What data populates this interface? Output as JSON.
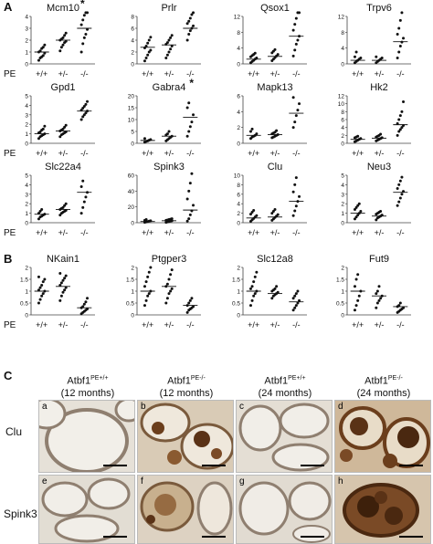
{
  "panel_labels": {
    "a": "A",
    "b": "B",
    "c": "C"
  },
  "genotype_row_label": "PE",
  "chart_data": [
    {
      "type": "scatter",
      "title": "Mcm10",
      "marker": "*",
      "categories": [
        "+/+",
        "+/-",
        "-/-"
      ],
      "ylim": [
        0,
        4
      ],
      "yticks": [
        0,
        1,
        2,
        3,
        4
      ],
      "points": [
        [
          0.3,
          0.5,
          0.6,
          0.7,
          0.9,
          1.0,
          1.1,
          1.3,
          1.4,
          1.6
        ],
        [
          1.1,
          1.4,
          1.6,
          1.8,
          1.9,
          2.0,
          2.1,
          2.2,
          2.4,
          2.6
        ],
        [
          1.0,
          1.7,
          2.2,
          2.5,
          2.9,
          3.3,
          3.7,
          4.1,
          4.5,
          5.0
        ]
      ],
      "means": [
        1.0,
        2.0,
        3.0
      ]
    },
    {
      "type": "scatter",
      "title": "Prlr",
      "marker": "",
      "categories": [
        "+/+",
        "+/-",
        "-/-"
      ],
      "ylim": [
        0,
        8
      ],
      "yticks": [
        0,
        2,
        4,
        6,
        8
      ],
      "points": [
        [
          0.5,
          1.0,
          1.5,
          2.0,
          2.3,
          2.7,
          3.0,
          3.5,
          4.0,
          4.5
        ],
        [
          1.0,
          1.5,
          2.0,
          2.5,
          3.0,
          3.3,
          3.6,
          4.0,
          4.4,
          4.8
        ],
        [
          4.0,
          5.0,
          5.6,
          6.0,
          6.4,
          6.8,
          7.2,
          7.7,
          8.3,
          9.0
        ]
      ],
      "means": [
        2.8,
        3.2,
        6.0
      ]
    },
    {
      "type": "scatter",
      "title": "Qsox1",
      "marker": "",
      "categories": [
        "+/+",
        "+/-",
        "-/-"
      ],
      "ylim": [
        0,
        12
      ],
      "yticks": [
        0,
        4,
        8,
        12
      ],
      "points": [
        [
          0.3,
          0.6,
          0.9,
          1.2,
          1.5,
          1.8,
          2.1,
          2.4,
          2.7
        ],
        [
          0.8,
          1.2,
          1.6,
          2.0,
          2.4,
          2.8,
          3.2,
          3.6
        ],
        [
          2.0,
          3.5,
          5.0,
          6.0,
          7.0,
          8.5,
          10.0,
          11.5,
          13.0,
          14.5
        ]
      ],
      "means": [
        1.2,
        1.9,
        7.0
      ]
    },
    {
      "type": "scatter",
      "title": "Trpv6",
      "marker": "",
      "categories": [
        "+/+",
        "+/-",
        "-/-"
      ],
      "ylim": [
        0,
        12
      ],
      "yticks": [
        0,
        4,
        8,
        12
      ],
      "points": [
        [
          0.3,
          0.6,
          0.9,
          1.2,
          1.5,
          1.8,
          3.0
        ],
        [
          0.3,
          0.6,
          0.9,
          1.2,
          1.5,
          1.8
        ],
        [
          1.5,
          3.0,
          4.5,
          5.5,
          6.5,
          7.5,
          9.0,
          11.0,
          13.0
        ]
      ],
      "means": [
        0.9,
        0.9,
        5.6
      ]
    },
    {
      "type": "scatter",
      "title": "Gpd1",
      "marker": "",
      "categories": [
        "+/+",
        "+/-",
        "-/-"
      ],
      "ylim": [
        0,
        5
      ],
      "yticks": [
        0,
        1,
        2,
        3,
        4,
        5
      ],
      "points": [
        [
          0.5,
          0.7,
          0.8,
          0.9,
          1.0,
          1.1,
          1.2,
          1.4,
          1.5,
          1.8
        ],
        [
          0.7,
          0.9,
          1.0,
          1.1,
          1.2,
          1.3,
          1.4,
          1.5,
          1.7,
          1.9
        ],
        [
          2.5,
          2.8,
          3.0,
          3.2,
          3.4,
          3.5,
          3.7,
          3.9,
          4.1,
          4.4
        ]
      ],
      "means": [
        1.0,
        1.3,
        3.4
      ]
    },
    {
      "type": "scatter",
      "title": "Gabra4",
      "marker": "*",
      "categories": [
        "+/+",
        "+/-",
        "-/-"
      ],
      "ylim": [
        0,
        20
      ],
      "yticks": [
        0,
        5,
        10,
        15,
        20
      ],
      "points": [
        [
          0.5,
          0.8,
          1.0,
          1.3,
          1.6,
          2.0
        ],
        [
          1.0,
          1.5,
          2.0,
          2.5,
          3.0,
          3.5,
          4.0,
          5.0
        ],
        [
          3.0,
          5.0,
          7.0,
          9.0,
          12.0,
          15.0,
          17.0
        ]
      ],
      "means": [
        1.2,
        3.0,
        11.0
      ]
    },
    {
      "type": "scatter",
      "title": "Mapk13",
      "marker": "",
      "categories": [
        "+/+",
        "+/-",
        "-/-"
      ],
      "ylim": [
        0,
        6
      ],
      "yticks": [
        0,
        2,
        4,
        6
      ],
      "points": [
        [
          0.6,
          0.8,
          0.9,
          1.0,
          1.2,
          1.5,
          1.8
        ],
        [
          0.7,
          0.8,
          0.9,
          1.0,
          1.1,
          1.2,
          1.3,
          1.4,
          1.6
        ],
        [
          2.0,
          2.7,
          3.5,
          4.2,
          5.0,
          5.8
        ]
      ],
      "means": [
        1.0,
        1.1,
        3.8
      ]
    },
    {
      "type": "scatter",
      "title": "Hk2",
      "marker": "",
      "categories": [
        "+/+",
        "+/-",
        "-/-"
      ],
      "ylim": [
        0,
        12
      ],
      "yticks": [
        0,
        2,
        4,
        6,
        8,
        10,
        12
      ],
      "points": [
        [
          0.4,
          0.6,
          0.8,
          1.0,
          1.2,
          1.4,
          1.6,
          1.8
        ],
        [
          0.6,
          0.8,
          1.0,
          1.2,
          1.4,
          1.6,
          1.8,
          2.0,
          2.3
        ],
        [
          2.0,
          3.0,
          3.5,
          4.0,
          4.5,
          5.0,
          6.0,
          7.0,
          8.0,
          10.5
        ]
      ],
      "means": [
        1.0,
        1.3,
        4.7
      ]
    },
    {
      "type": "scatter",
      "title": "Slc22a4",
      "marker": "",
      "categories": [
        "+/+",
        "+/-",
        "-/-"
      ],
      "ylim": [
        0,
        5
      ],
      "yticks": [
        0,
        1,
        2,
        3,
        4,
        5
      ],
      "points": [
        [
          0.4,
          0.6,
          0.7,
          0.8,
          0.9,
          1.0,
          1.2,
          1.4
        ],
        [
          0.8,
          1.0,
          1.1,
          1.2,
          1.3,
          1.4,
          1.5,
          1.6,
          1.8,
          2.0
        ],
        [
          1.0,
          1.6,
          2.2,
          2.7,
          3.2,
          3.8,
          4.4
        ]
      ],
      "means": [
        0.9,
        1.4,
        3.2
      ]
    },
    {
      "type": "scatter",
      "title": "Spink3",
      "marker": "",
      "categories": [
        "+/+",
        "+/-",
        "-/-"
      ],
      "ylim": [
        0,
        60
      ],
      "yticks": [
        0,
        20,
        40,
        60
      ],
      "points": [
        [
          0.5,
          1.0,
          1.5,
          2.0,
          2.5,
          3.0,
          4.0
        ],
        [
          0.5,
          1.0,
          1.5,
          2.0,
          2.5,
          3.0,
          3.5,
          4.0,
          4.5,
          5.0
        ],
        [
          2.0,
          5.0,
          10.0,
          15.0,
          22.0,
          30.0,
          40.0,
          50.0,
          62.0
        ]
      ],
      "means": [
        1.5,
        2.5,
        16.0
      ]
    },
    {
      "type": "scatter",
      "title": "Clu",
      "marker": "",
      "categories": [
        "+/+",
        "+/-",
        "-/-"
      ],
      "ylim": [
        0,
        10
      ],
      "yticks": [
        0,
        2,
        4,
        6,
        8,
        10
      ],
      "points": [
        [
          0.3,
          0.6,
          0.9,
          1.2,
          1.5,
          1.8,
          2.2,
          2.6
        ],
        [
          0.5,
          0.8,
          1.1,
          1.4,
          1.7,
          2.0,
          2.4,
          2.8
        ],
        [
          1.5,
          2.5,
          3.5,
          4.5,
          5.5,
          6.5,
          8.0,
          9.5
        ]
      ],
      "means": [
        1.0,
        1.2,
        4.5
      ]
    },
    {
      "type": "scatter",
      "title": "Neu3",
      "marker": "",
      "categories": [
        "+/+",
        "+/-",
        "-/-"
      ],
      "ylim": [
        0,
        5
      ],
      "yticks": [
        0,
        1,
        2,
        3,
        4,
        5
      ],
      "points": [
        [
          0.4,
          0.6,
          0.8,
          1.0,
          1.2,
          1.4,
          1.6,
          1.8,
          2.0
        ],
        [
          0.3,
          0.5,
          0.6,
          0.7,
          0.8,
          0.9,
          1.0,
          1.1,
          1.2
        ],
        [
          1.8,
          2.2,
          2.6,
          3.0,
          3.3,
          3.6,
          4.0,
          4.4,
          4.8
        ]
      ],
      "means": [
        1.0,
        0.7,
        3.2
      ]
    },
    {
      "type": "scatter",
      "title": "NKain1",
      "marker": "",
      "categories": [
        "+/+",
        "+/-",
        "-/-"
      ],
      "ylim": [
        0,
        2.0
      ],
      "yticks": [
        0,
        0.5,
        1.0,
        1.5,
        2.0
      ],
      "points": [
        [
          0.5,
          0.65,
          0.8,
          0.9,
          1.0,
          1.05,
          1.15,
          1.25,
          1.4,
          1.5,
          1.6
        ],
        [
          0.6,
          0.8,
          0.95,
          1.05,
          1.15,
          1.25,
          1.35,
          1.45,
          1.55,
          1.65,
          1.75
        ],
        [
          0.05,
          0.1,
          0.15,
          0.2,
          0.25,
          0.3,
          0.35,
          0.45,
          0.55,
          0.7
        ]
      ],
      "means": [
        1.0,
        1.2,
        0.3
      ]
    },
    {
      "type": "scatter",
      "title": "Ptgper3",
      "marker": "",
      "categories": [
        "+/+",
        "+/-",
        "-/-"
      ],
      "ylim": [
        0,
        2.0
      ],
      "yticks": [
        0,
        0.5,
        1.0,
        1.5,
        2.0
      ],
      "points": [
        [
          0.4,
          0.6,
          0.8,
          0.9,
          1.0,
          1.2,
          1.4,
          1.6,
          1.8,
          2.0
        ],
        [
          0.5,
          0.7,
          0.9,
          1.0,
          1.1,
          1.2,
          1.3,
          1.5,
          1.7,
          1.9
        ],
        [
          0.1,
          0.2,
          0.25,
          0.3,
          0.35,
          0.4,
          0.5,
          0.6,
          0.7
        ]
      ],
      "means": [
        1.0,
        1.2,
        0.4
      ]
    },
    {
      "type": "scatter",
      "title": "Slc12a8",
      "marker": "",
      "categories": [
        "+/+",
        "+/-",
        "-/-"
      ],
      "ylim": [
        0,
        2.0
      ],
      "yticks": [
        0,
        0.5,
        1.0,
        1.5,
        2.0
      ],
      "points": [
        [
          0.4,
          0.6,
          0.8,
          0.9,
          1.0,
          1.1,
          1.2,
          1.4,
          1.6,
          1.8
        ],
        [
          0.7,
          0.8,
          0.85,
          0.9,
          0.95,
          1.0,
          1.05,
          1.1,
          1.2
        ],
        [
          0.2,
          0.3,
          0.4,
          0.5,
          0.6,
          0.7,
          0.8,
          0.9,
          1.0
        ]
      ],
      "means": [
        1.0,
        0.9,
        0.55
      ]
    },
    {
      "type": "scatter",
      "title": "Fut9",
      "marker": "",
      "categories": [
        "+/+",
        "+/-",
        "-/-"
      ],
      "ylim": [
        0,
        2.0
      ],
      "yticks": [
        0,
        0.5,
        1.0,
        1.5,
        2.0
      ],
      "points": [
        [
          0.2,
          0.4,
          0.6,
          0.8,
          1.0,
          1.2,
          1.5,
          1.7
        ],
        [
          0.3,
          0.5,
          0.6,
          0.7,
          0.8,
          0.9,
          1.0,
          1.2
        ],
        [
          0.1,
          0.15,
          0.2,
          0.25,
          0.3,
          0.35,
          0.4,
          0.5
        ]
      ],
      "means": [
        1.0,
        0.8,
        0.35
      ]
    }
  ],
  "panel_c": {
    "column_titles": [
      {
        "name": "Atbf1",
        "sup": "PE+/+",
        "age": "(12 months)"
      },
      {
        "name": "Atbf1",
        "sup": "PE-/-",
        "age": "(12 months)"
      },
      {
        "name": "Atbf1",
        "sup": "PE+/+",
        "age": "(24 months)"
      },
      {
        "name": "Atbf1",
        "sup": "PE-/-",
        "age": "(24 months)"
      }
    ],
    "row_labels": [
      "Clu",
      "Spink3"
    ],
    "image_letters": [
      "a",
      "b",
      "c",
      "d",
      "e",
      "f",
      "g",
      "h"
    ],
    "colors": {
      "tissue_bg": "#e9e4db",
      "lumen": "#f3f0ea",
      "epithelium": "#8f7f70",
      "stain_brown": "#6b3e1c"
    }
  }
}
